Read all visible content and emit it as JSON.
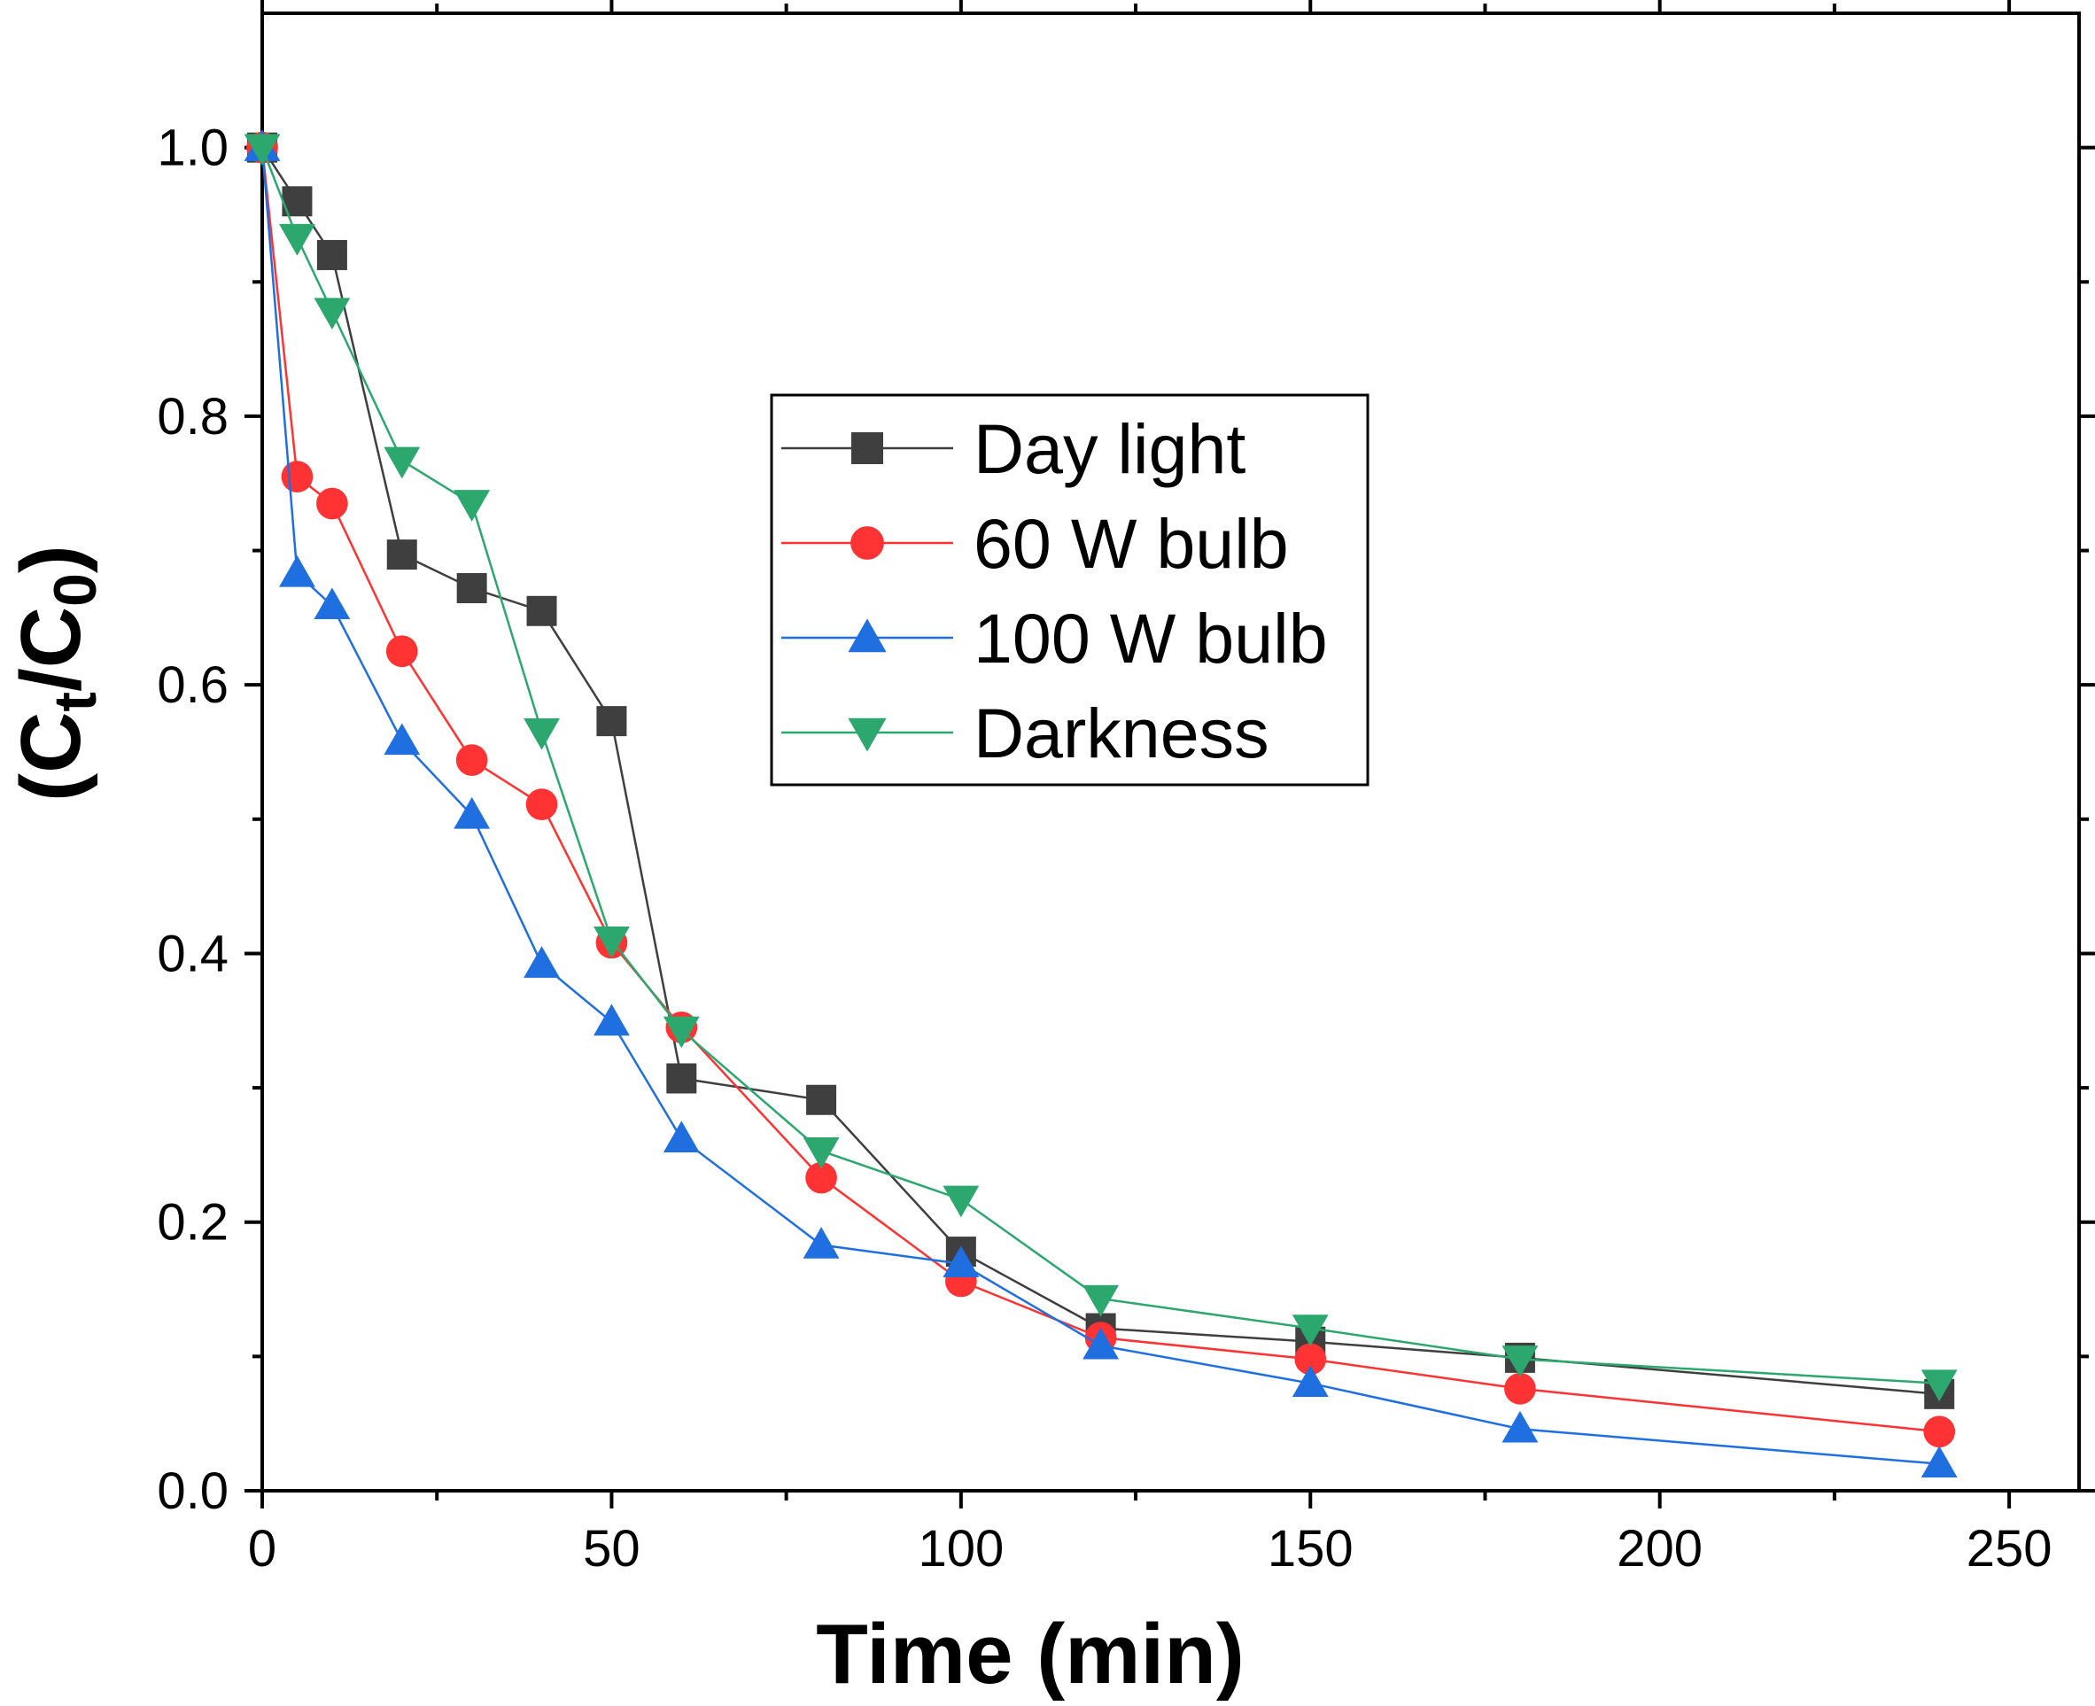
{
  "chart_data": {
    "type": "line",
    "title": "",
    "xlabel": "Time (min)",
    "ylabel": {
      "prefix": "(C",
      "sub1": "t",
      "middle": "/C",
      "sub2": "0",
      "suffix": ")"
    },
    "xlim": [
      0,
      260
    ],
    "ylim": [
      0,
      1.1
    ],
    "x_ticks": [
      0,
      50,
      100,
      150,
      200,
      250
    ],
    "x_tick_labels": [
      "0",
      "50",
      "100",
      "150",
      "200",
      "250"
    ],
    "x_minor_ticks": [
      25,
      75,
      125,
      175,
      225
    ],
    "y_ticks": [
      0,
      0.2,
      0.4,
      0.6,
      0.8,
      1.0
    ],
    "y_tick_labels": [
      "0.0",
      "0.2",
      "0.4",
      "0.6",
      "0.8",
      "1.0"
    ],
    "y_minor_ticks": [
      0.1,
      0.3,
      0.5,
      0.7,
      0.9
    ],
    "grid": false,
    "legend_position": "center",
    "series": [
      {
        "name": "Day light",
        "color": "#3f3f3f",
        "marker": "square",
        "x": [
          0,
          5,
          10,
          20,
          30,
          40,
          50,
          60,
          80,
          100,
          120,
          150,
          180,
          240
        ],
        "y": [
          1.0,
          0.96,
          0.92,
          0.697,
          0.672,
          0.655,
          0.573,
          0.307,
          0.291,
          0.178,
          0.121,
          0.111,
          0.099,
          0.072
        ]
      },
      {
        "name": "60 W bulb",
        "color": "#ff3333",
        "marker": "circle",
        "x": [
          0,
          5,
          10,
          20,
          30,
          40,
          50,
          60,
          80,
          100,
          120,
          150,
          180,
          240
        ],
        "y": [
          1.0,
          0.755,
          0.735,
          0.625,
          0.544,
          0.511,
          0.408,
          0.345,
          0.233,
          0.156,
          0.114,
          0.098,
          0.076,
          0.044
        ]
      },
      {
        "name": "100 W bulb",
        "color": "#1f6fe0",
        "marker": "triangle-up",
        "x": [
          0,
          5,
          10,
          20,
          30,
          40,
          50,
          60,
          80,
          100,
          120,
          150,
          180,
          240
        ],
        "y": [
          1.0,
          0.683,
          0.659,
          0.558,
          0.503,
          0.392,
          0.349,
          0.262,
          0.183,
          0.169,
          0.108,
          0.08,
          0.046,
          0.02
        ]
      },
      {
        "name": "Darkness",
        "color": "#2ca86e",
        "marker": "triangle-down",
        "x": [
          0,
          5,
          10,
          20,
          30,
          40,
          50,
          60,
          80,
          100,
          120,
          150,
          180,
          240
        ],
        "y": [
          1.0,
          0.933,
          0.878,
          0.767,
          0.735,
          0.565,
          0.41,
          0.343,
          0.253,
          0.217,
          0.143,
          0.121,
          0.098,
          0.08
        ]
      }
    ]
  }
}
